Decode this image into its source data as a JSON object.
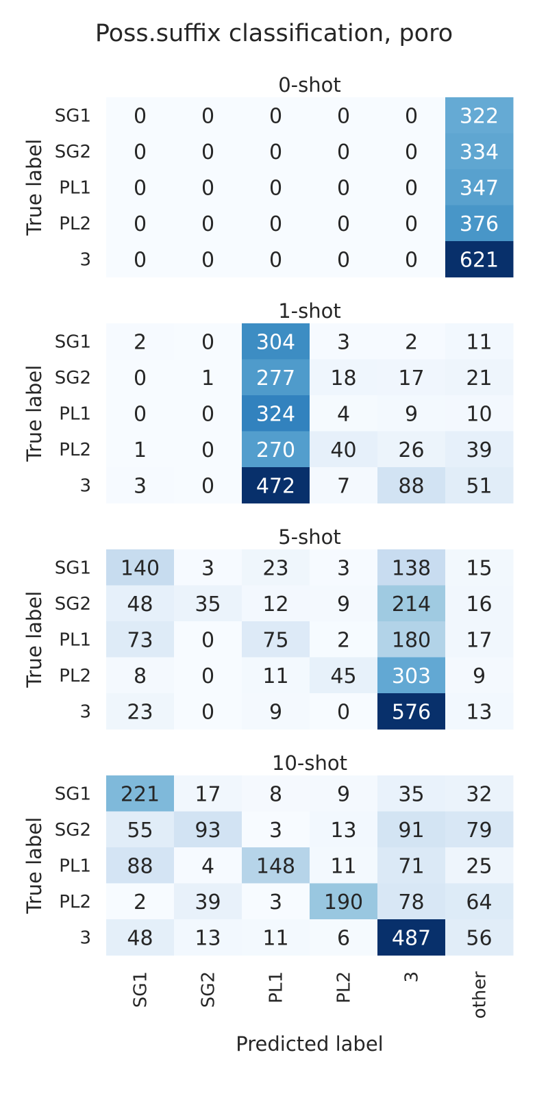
{
  "title": "Poss.suffix classification, poro",
  "chart_data": {
    "type": "heatmap",
    "title": "Poss.suffix classification, poro",
    "xlabel": "Predicted label",
    "ylabel": "True label",
    "true_labels": [
      "SG1",
      "SG2",
      "PL1",
      "PL2",
      "3"
    ],
    "predicted_labels": [
      "SG1",
      "SG2",
      "PL1",
      "PL2",
      "3",
      "other"
    ],
    "colormap": "Blues",
    "colorbar": false,
    "panels": [
      {
        "title": "0-shot",
        "matrix": [
          [
            0,
            0,
            0,
            0,
            0,
            322
          ],
          [
            0,
            0,
            0,
            0,
            0,
            334
          ],
          [
            0,
            0,
            0,
            0,
            0,
            347
          ],
          [
            0,
            0,
            0,
            0,
            0,
            376
          ],
          [
            0,
            0,
            0,
            0,
            0,
            621
          ]
        ]
      },
      {
        "title": "1-shot",
        "matrix": [
          [
            2,
            0,
            304,
            3,
            2,
            11
          ],
          [
            0,
            1,
            277,
            18,
            17,
            21
          ],
          [
            0,
            0,
            324,
            4,
            9,
            10
          ],
          [
            1,
            0,
            270,
            40,
            26,
            39
          ],
          [
            3,
            0,
            472,
            7,
            88,
            51
          ]
        ]
      },
      {
        "title": "5-shot",
        "matrix": [
          [
            140,
            3,
            23,
            3,
            138,
            15
          ],
          [
            48,
            35,
            12,
            9,
            214,
            16
          ],
          [
            73,
            0,
            75,
            2,
            180,
            17
          ],
          [
            8,
            0,
            11,
            45,
            303,
            9
          ],
          [
            23,
            0,
            9,
            0,
            576,
            13
          ]
        ]
      },
      {
        "title": "10-shot",
        "matrix": [
          [
            221,
            17,
            8,
            9,
            35,
            32
          ],
          [
            55,
            93,
            3,
            13,
            91,
            79
          ],
          [
            88,
            4,
            148,
            11,
            71,
            25
          ],
          [
            2,
            39,
            3,
            190,
            78,
            64
          ],
          [
            48,
            13,
            11,
            6,
            487,
            56
          ]
        ]
      }
    ]
  }
}
